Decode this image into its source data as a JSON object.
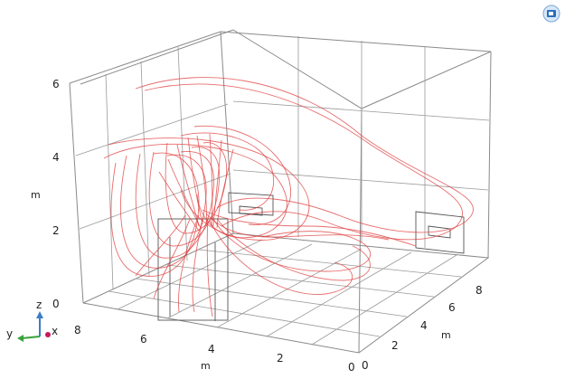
{
  "plot": {
    "z_axis": {
      "label": "m",
      "ticks": [
        "6",
        "4",
        "2",
        "0"
      ]
    },
    "x_axis_front": {
      "label": "m",
      "ticks": [
        "8",
        "6",
        "4",
        "2",
        "0"
      ]
    },
    "y_axis_right": {
      "label": "m",
      "ticks": [
        "0",
        "2",
        "4",
        "6",
        "8"
      ]
    }
  },
  "triad": {
    "x": "x",
    "y": "y",
    "z": "z"
  },
  "colors": {
    "streamline": "#e03c3c",
    "frame": "#8a8a8a",
    "triad_x": "#c8185b",
    "triad_y": "#3aa13a",
    "triad_z": "#3b7fc4"
  },
  "toolbar": {
    "view_icon": "view-icon"
  }
}
